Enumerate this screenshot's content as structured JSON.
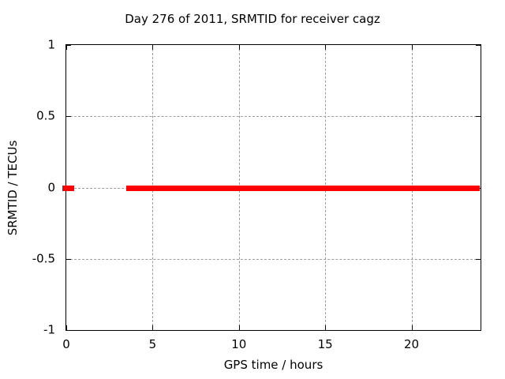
{
  "chart_data": {
    "type": "line",
    "title": "Day 276 of 2011, SRMTID for receiver cagz",
    "xlabel": "GPS time / hours",
    "ylabel": "SRMTID / TECUs",
    "xlim": [
      0,
      24
    ],
    "ylim": [
      -1,
      1
    ],
    "xticks": [
      0,
      5,
      10,
      15,
      20
    ],
    "yticks": [
      -1,
      -0.5,
      0,
      0.5,
      1
    ],
    "grid": true,
    "legend": "none",
    "series": [
      {
        "name": "SRMTID",
        "color": "#ff0000",
        "style": "thick-line",
        "y_value": 0,
        "segments": [
          {
            "x_start": 0,
            "x_end": 0.35,
            "y": 0
          },
          {
            "x_start": 3.72,
            "x_end": 23.85,
            "y": 0
          }
        ]
      }
    ],
    "colors": {
      "background": "#ffffff",
      "axis": "#000000",
      "grid": "#9c9c9c",
      "text": "#000000"
    }
  }
}
